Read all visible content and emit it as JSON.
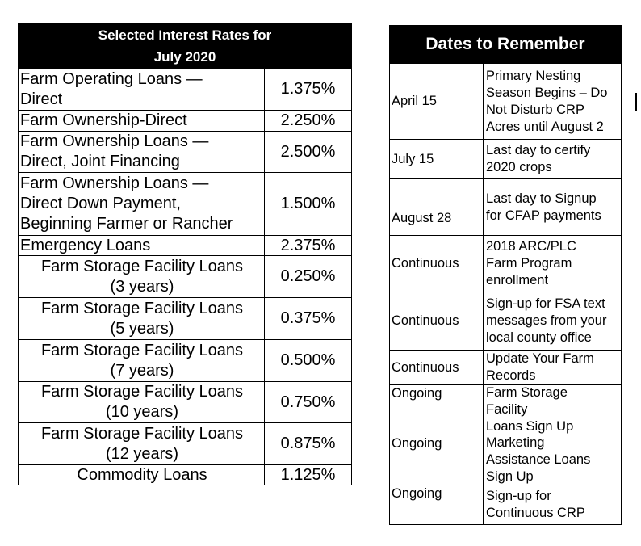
{
  "rates_table": {
    "title": "Selected Interest Rates for\nJuly 2020",
    "rows": [
      [
        "Farm Operating Loans —\nDirect",
        "1.375%"
      ],
      [
        "Farm Ownership-Direct",
        "2.250%"
      ],
      [
        "Farm Ownership Loans —\nDirect, Joint Financing",
        "2.500%"
      ],
      [
        "Farm Ownership Loans —\nDirect Down Payment,\nBeginning Farmer or Rancher",
        "1.500%"
      ],
      [
        "Emergency Loans",
        "2.375%"
      ],
      [
        "Farm Storage Facility Loans\n(3 years)",
        "0.250%"
      ],
      [
        "Farm Storage Facility Loans\n(5 years)",
        "0.375%"
      ],
      [
        "Farm Storage Facility Loans\n(7 years)",
        "0.500%"
      ],
      [
        "Farm Storage Facility Loans\n(10 years)",
        "0.750%"
      ],
      [
        "Farm Storage Facility Loans\n(12 years)",
        "0.875%"
      ],
      [
        "Commodity Loans",
        "1.125%"
      ]
    ]
  },
  "dates_table": {
    "title": "Dates to Remember",
    "rows": [
      [
        "April 15",
        "Primary Nesting\nSeason Begins – Do\nNot Disturb CRP\nAcres until August 2"
      ],
      [
        "July 15",
        "Last day to certify\n2020 crops"
      ],
      [
        "August 28",
        "Last day to Signup\nfor CFAP payments"
      ],
      [
        "Continuous",
        "2018 ARC/PLC\nFarm Program\nenrollment"
      ],
      [
        "Continuous",
        "Sign-up for FSA text\nmessages from your\nlocal county office"
      ],
      [
        "Continuous",
        "Update Your Farm\nRecords"
      ],
      [
        "Ongoing",
        "Farm Storage\nFacility\nLoans Sign Up"
      ],
      [
        "Ongoing",
        "Marketing\nAssistance Loans\nSign Up"
      ],
      [
        "Ongoing",
        "Sign-up for\nContinuous CRP"
      ]
    ]
  }
}
